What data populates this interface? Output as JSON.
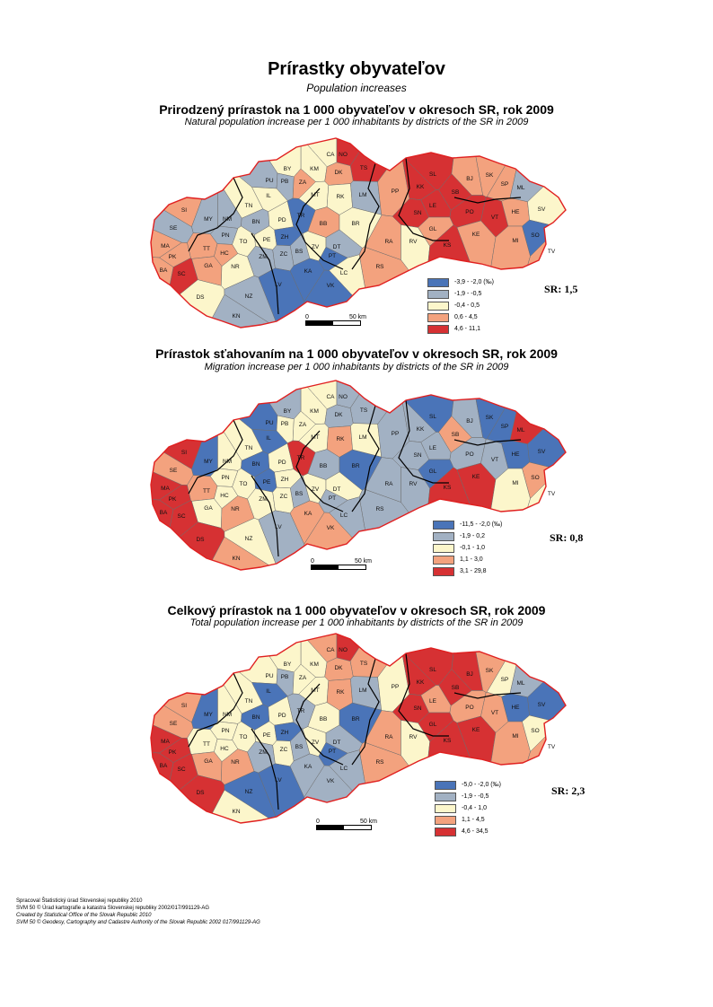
{
  "header": {
    "title": "Prírastky obyvateľov",
    "subtitle": "Population increases"
  },
  "palette": {
    "blue": "#4a74b8",
    "grey": "#a2b1c3",
    "cream": "#fcf6cb",
    "salmon": "#f3a27e",
    "red": "#d63133",
    "border": "#e02020"
  },
  "maps": [
    {
      "title": "Prirodzený prírastok na 1 000 obyvateľov v okresoch SR, rok 2009",
      "subtitle": "Natural population increase per 1 000 inhabitants by districts of the SR in 2009",
      "sr_value": "SR: 1,5",
      "legend": [
        "-3,9 - -2,0 (‰)",
        "-1,9 - -0,5",
        "-0,4 - 0,5",
        "0,6 - 4,5",
        "4,6 - 11,1"
      ],
      "scale_zero": "0",
      "scale_label": "50 km",
      "districts": [
        {
          "code": "CA",
          "c": 2
        },
        {
          "code": "NO",
          "c": 4
        },
        {
          "code": "TS",
          "c": 4
        },
        {
          "code": "KM",
          "c": 2
        },
        {
          "code": "BY",
          "c": 2
        },
        {
          "code": "PU",
          "c": 1
        },
        {
          "code": "PB",
          "c": 1
        },
        {
          "code": "ZA",
          "c": 3
        },
        {
          "code": "DK",
          "c": 3
        },
        {
          "code": "IL",
          "c": 2
        },
        {
          "code": "MT",
          "c": 2
        },
        {
          "code": "RK",
          "c": 2
        },
        {
          "code": "LM",
          "c": 1
        },
        {
          "code": "PP",
          "c": 3
        },
        {
          "code": "KK",
          "c": 4
        },
        {
          "code": "SL",
          "c": 4
        },
        {
          "code": "BJ",
          "c": 3
        },
        {
          "code": "SK",
          "c": 3
        },
        {
          "code": "SP",
          "c": 3
        },
        {
          "code": "ML",
          "c": 1
        },
        {
          "code": "SB",
          "c": 4
        },
        {
          "code": "LE",
          "c": 4
        },
        {
          "code": "SN",
          "c": 4
        },
        {
          "code": "PO",
          "c": 4
        },
        {
          "code": "VT",
          "c": 4
        },
        {
          "code": "HE",
          "c": 3
        },
        {
          "code": "SV",
          "c": 2
        },
        {
          "code": "TN",
          "c": 2
        },
        {
          "code": "SI",
          "c": 3
        },
        {
          "code": "MY",
          "c": 1
        },
        {
          "code": "NM",
          "c": 1
        },
        {
          "code": "BN",
          "c": 1
        },
        {
          "code": "PD",
          "c": 2
        },
        {
          "code": "TR",
          "c": 0
        },
        {
          "code": "BB",
          "c": 3
        },
        {
          "code": "BR",
          "c": 2
        },
        {
          "code": "SE",
          "c": 1
        },
        {
          "code": "PN",
          "c": 1
        },
        {
          "code": "TO",
          "c": 2
        },
        {
          "code": "PE",
          "c": 2
        },
        {
          "code": "ZH",
          "c": 0
        },
        {
          "code": "BS",
          "c": 1
        },
        {
          "code": "ZV",
          "c": 2
        },
        {
          "code": "DT",
          "c": 1
        },
        {
          "code": "RA",
          "c": 3
        },
        {
          "code": "RV",
          "c": 2
        },
        {
          "code": "GL",
          "c": 3
        },
        {
          "code": "KE",
          "c": 3
        },
        {
          "code": "KS",
          "c": 4
        },
        {
          "code": "MI",
          "c": 3
        },
        {
          "code": "SO",
          "c": 0
        },
        {
          "code": "MA",
          "c": 3
        },
        {
          "code": "TT",
          "c": 3
        },
        {
          "code": "HC",
          "c": 3
        },
        {
          "code": "PK",
          "c": 3
        },
        {
          "code": "GA",
          "c": 3
        },
        {
          "code": "NR",
          "c": 2
        },
        {
          "code": "ZM",
          "c": 1
        },
        {
          "code": "ZC",
          "c": 1
        },
        {
          "code": "PT",
          "c": 0
        },
        {
          "code": "RS",
          "c": 3
        },
        {
          "code": "LC",
          "c": 2
        },
        {
          "code": "KA",
          "c": 0
        },
        {
          "code": "VK",
          "c": 0
        },
        {
          "code": "BA",
          "c": 3
        },
        {
          "code": "SC",
          "c": 4
        },
        {
          "code": "DS",
          "c": 2
        },
        {
          "code": "NZ",
          "c": 1
        },
        {
          "code": "LV",
          "c": 0
        },
        {
          "code": "KN",
          "c": 1
        },
        {
          "code": "TV",
          "c": 3
        }
      ]
    },
    {
      "title": "Prírastok sťahovaním na 1 000 obyvateľov v okresoch SR, rok 2009",
      "subtitle": "Migration increase per 1 000 inhabitants by districts of the SR in 2009",
      "sr_value": "SR: 0,8",
      "legend": [
        "-11,5 - -2,0 (‰)",
        "-1,9 - 0,2",
        "-0,1 - 1,0",
        "1,1 - 3,0",
        "3,1 - 29,8"
      ],
      "scale_zero": "0",
      "scale_label": "50 km",
      "districts": [
        {
          "code": "CA",
          "c": 2
        },
        {
          "code": "NO",
          "c": 1
        },
        {
          "code": "TS",
          "c": 1
        },
        {
          "code": "KM",
          "c": 2
        },
        {
          "code": "BY",
          "c": 1
        },
        {
          "code": "PU",
          "c": 0
        },
        {
          "code": "PB",
          "c": 2
        },
        {
          "code": "ZA",
          "c": 2
        },
        {
          "code": "DK",
          "c": 1
        },
        {
          "code": "IL",
          "c": 0
        },
        {
          "code": "MT",
          "c": 2
        },
        {
          "code": "RK",
          "c": 3
        },
        {
          "code": "LM",
          "c": 2
        },
        {
          "code": "PP",
          "c": 1
        },
        {
          "code": "KK",
          "c": 1
        },
        {
          "code": "SL",
          "c": 0
        },
        {
          "code": "BJ",
          "c": 1
        },
        {
          "code": "SK",
          "c": 0
        },
        {
          "code": "SP",
          "c": 0
        },
        {
          "code": "ML",
          "c": 4
        },
        {
          "code": "SB",
          "c": 3
        },
        {
          "code": "LE",
          "c": 1
        },
        {
          "code": "SN",
          "c": 1
        },
        {
          "code": "PO",
          "c": 1
        },
        {
          "code": "VT",
          "c": 1
        },
        {
          "code": "HE",
          "c": 0
        },
        {
          "code": "SV",
          "c": 0
        },
        {
          "code": "TN",
          "c": 2
        },
        {
          "code": "SI",
          "c": 4
        },
        {
          "code": "MY",
          "c": 0
        },
        {
          "code": "NM",
          "c": 2
        },
        {
          "code": "BN",
          "c": 0
        },
        {
          "code": "PD",
          "c": 2
        },
        {
          "code": "TR",
          "c": 4
        },
        {
          "code": "BB",
          "c": 1
        },
        {
          "code": "BR",
          "c": 0
        },
        {
          "code": "SE",
          "c": 3
        },
        {
          "code": "PN",
          "c": 2
        },
        {
          "code": "TO",
          "c": 2
        },
        {
          "code": "PE",
          "c": 0
        },
        {
          "code": "ZH",
          "c": 2
        },
        {
          "code": "BS",
          "c": 1
        },
        {
          "code": "ZV",
          "c": 2
        },
        {
          "code": "DT",
          "c": 2
        },
        {
          "code": "RA",
          "c": 1
        },
        {
          "code": "RV",
          "c": 1
        },
        {
          "code": "GL",
          "c": 0
        },
        {
          "code": "KE",
          "c": 4
        },
        {
          "code": "KS",
          "c": 4
        },
        {
          "code": "MI",
          "c": 2
        },
        {
          "code": "SO",
          "c": 3
        },
        {
          "code": "MA",
          "c": 4
        },
        {
          "code": "TT",
          "c": 3
        },
        {
          "code": "HC",
          "c": 2
        },
        {
          "code": "PK",
          "c": 4
        },
        {
          "code": "GA",
          "c": 2
        },
        {
          "code": "NR",
          "c": 3
        },
        {
          "code": "ZM",
          "c": 2
        },
        {
          "code": "ZC",
          "c": 2
        },
        {
          "code": "PT",
          "c": 1
        },
        {
          "code": "RS",
          "c": 1
        },
        {
          "code": "LC",
          "c": 1
        },
        {
          "code": "KA",
          "c": 3
        },
        {
          "code": "VK",
          "c": 3
        },
        {
          "code": "BA",
          "c": 4
        },
        {
          "code": "SC",
          "c": 4
        },
        {
          "code": "DS",
          "c": 4
        },
        {
          "code": "NZ",
          "c": 2
        },
        {
          "code": "LV",
          "c": 1
        },
        {
          "code": "KN",
          "c": 3
        },
        {
          "code": "TV",
          "c": 2
        }
      ]
    },
    {
      "title": "Celkový prírastok na 1 000 obyvateľov v okresoch SR, rok 2009",
      "subtitle": "Total population increase per 1 000 inhabitants by districts of the SR in 2009",
      "sr_value": "SR: 2,3",
      "legend": [
        "-5,0 - -2,0 (‰)",
        "-1,9 - -0,5",
        "-0,4 - 1,0",
        "1,1 - 4,5",
        "4,6 - 34,5"
      ],
      "scale_zero": "0",
      "scale_label": "50 km",
      "districts": [
        {
          "code": "CA",
          "c": 3
        },
        {
          "code": "NO",
          "c": 4
        },
        {
          "code": "TS",
          "c": 3
        },
        {
          "code": "KM",
          "c": 2
        },
        {
          "code": "BY",
          "c": 2
        },
        {
          "code": "PU",
          "c": 2
        },
        {
          "code": "PB",
          "c": 1
        },
        {
          "code": "ZA",
          "c": 2
        },
        {
          "code": "DK",
          "c": 3
        },
        {
          "code": "IL",
          "c": 0
        },
        {
          "code": "MT",
          "c": 2
        },
        {
          "code": "RK",
          "c": 3
        },
        {
          "code": "LM",
          "c": 1
        },
        {
          "code": "PP",
          "c": 2
        },
        {
          "code": "KK",
          "c": 4
        },
        {
          "code": "SL",
          "c": 4
        },
        {
          "code": "BJ",
          "c": 4
        },
        {
          "code": "SK",
          "c": 3
        },
        {
          "code": "SP",
          "c": 2
        },
        {
          "code": "ML",
          "c": 1
        },
        {
          "code": "SB",
          "c": 4
        },
        {
          "code": "LE",
          "c": 3
        },
        {
          "code": "SN",
          "c": 4
        },
        {
          "code": "PO",
          "c": 3
        },
        {
          "code": "VT",
          "c": 3
        },
        {
          "code": "HE",
          "c": 0
        },
        {
          "code": "SV",
          "c": 0
        },
        {
          "code": "TN",
          "c": 2
        },
        {
          "code": "SI",
          "c": 3
        },
        {
          "code": "MY",
          "c": 0
        },
        {
          "code": "NM",
          "c": 2
        },
        {
          "code": "BN",
          "c": 0
        },
        {
          "code": "PD",
          "c": 2
        },
        {
          "code": "TR",
          "c": 1
        },
        {
          "code": "BB",
          "c": 2
        },
        {
          "code": "BR",
          "c": 0
        },
        {
          "code": "SE",
          "c": 3
        },
        {
          "code": "PN",
          "c": 2
        },
        {
          "code": "TO",
          "c": 2
        },
        {
          "code": "PE",
          "c": 2
        },
        {
          "code": "ZH",
          "c": 0
        },
        {
          "code": "BS",
          "c": 1
        },
        {
          "code": "ZV",
          "c": 2
        },
        {
          "code": "DT",
          "c": 1
        },
        {
          "code": "RA",
          "c": 3
        },
        {
          "code": "RV",
          "c": 2
        },
        {
          "code": "GL",
          "c": 4
        },
        {
          "code": "KE",
          "c": 4
        },
        {
          "code": "KS",
          "c": 4
        },
        {
          "code": "MI",
          "c": 3
        },
        {
          "code": "SO",
          "c": 2
        },
        {
          "code": "MA",
          "c": 4
        },
        {
          "code": "TT",
          "c": 2
        },
        {
          "code": "HC",
          "c": 2
        },
        {
          "code": "PK",
          "c": 4
        },
        {
          "code": "GA",
          "c": 3
        },
        {
          "code": "NR",
          "c": 3
        },
        {
          "code": "ZM",
          "c": 1
        },
        {
          "code": "ZC",
          "c": 2
        },
        {
          "code": "PT",
          "c": 0
        },
        {
          "code": "RS",
          "c": 3
        },
        {
          "code": "LC",
          "c": 1
        },
        {
          "code": "KA",
          "c": 1
        },
        {
          "code": "VK",
          "c": 1
        },
        {
          "code": "BA",
          "c": 4
        },
        {
          "code": "SC",
          "c": 4
        },
        {
          "code": "DS",
          "c": 4
        },
        {
          "code": "NZ",
          "c": 0
        },
        {
          "code": "LV",
          "c": 0
        },
        {
          "code": "KN",
          "c": 2
        },
        {
          "code": "TV",
          "c": 3
        }
      ]
    }
  ],
  "footer": {
    "line1": "Spracoval Štatistický úrad Slovenskej republiky 2010",
    "line2": "SVM 50 © Úrad kartografie a katastra Slovenskej republiky 2002/017/991129-AG",
    "line3": "Created by Statistical Office of the Slovak Republic 2010",
    "line4": "SVM 50 © Geodesy, Cartography and Cadastre Authority of the Slovak Republic 2002 017/991129-AG"
  }
}
